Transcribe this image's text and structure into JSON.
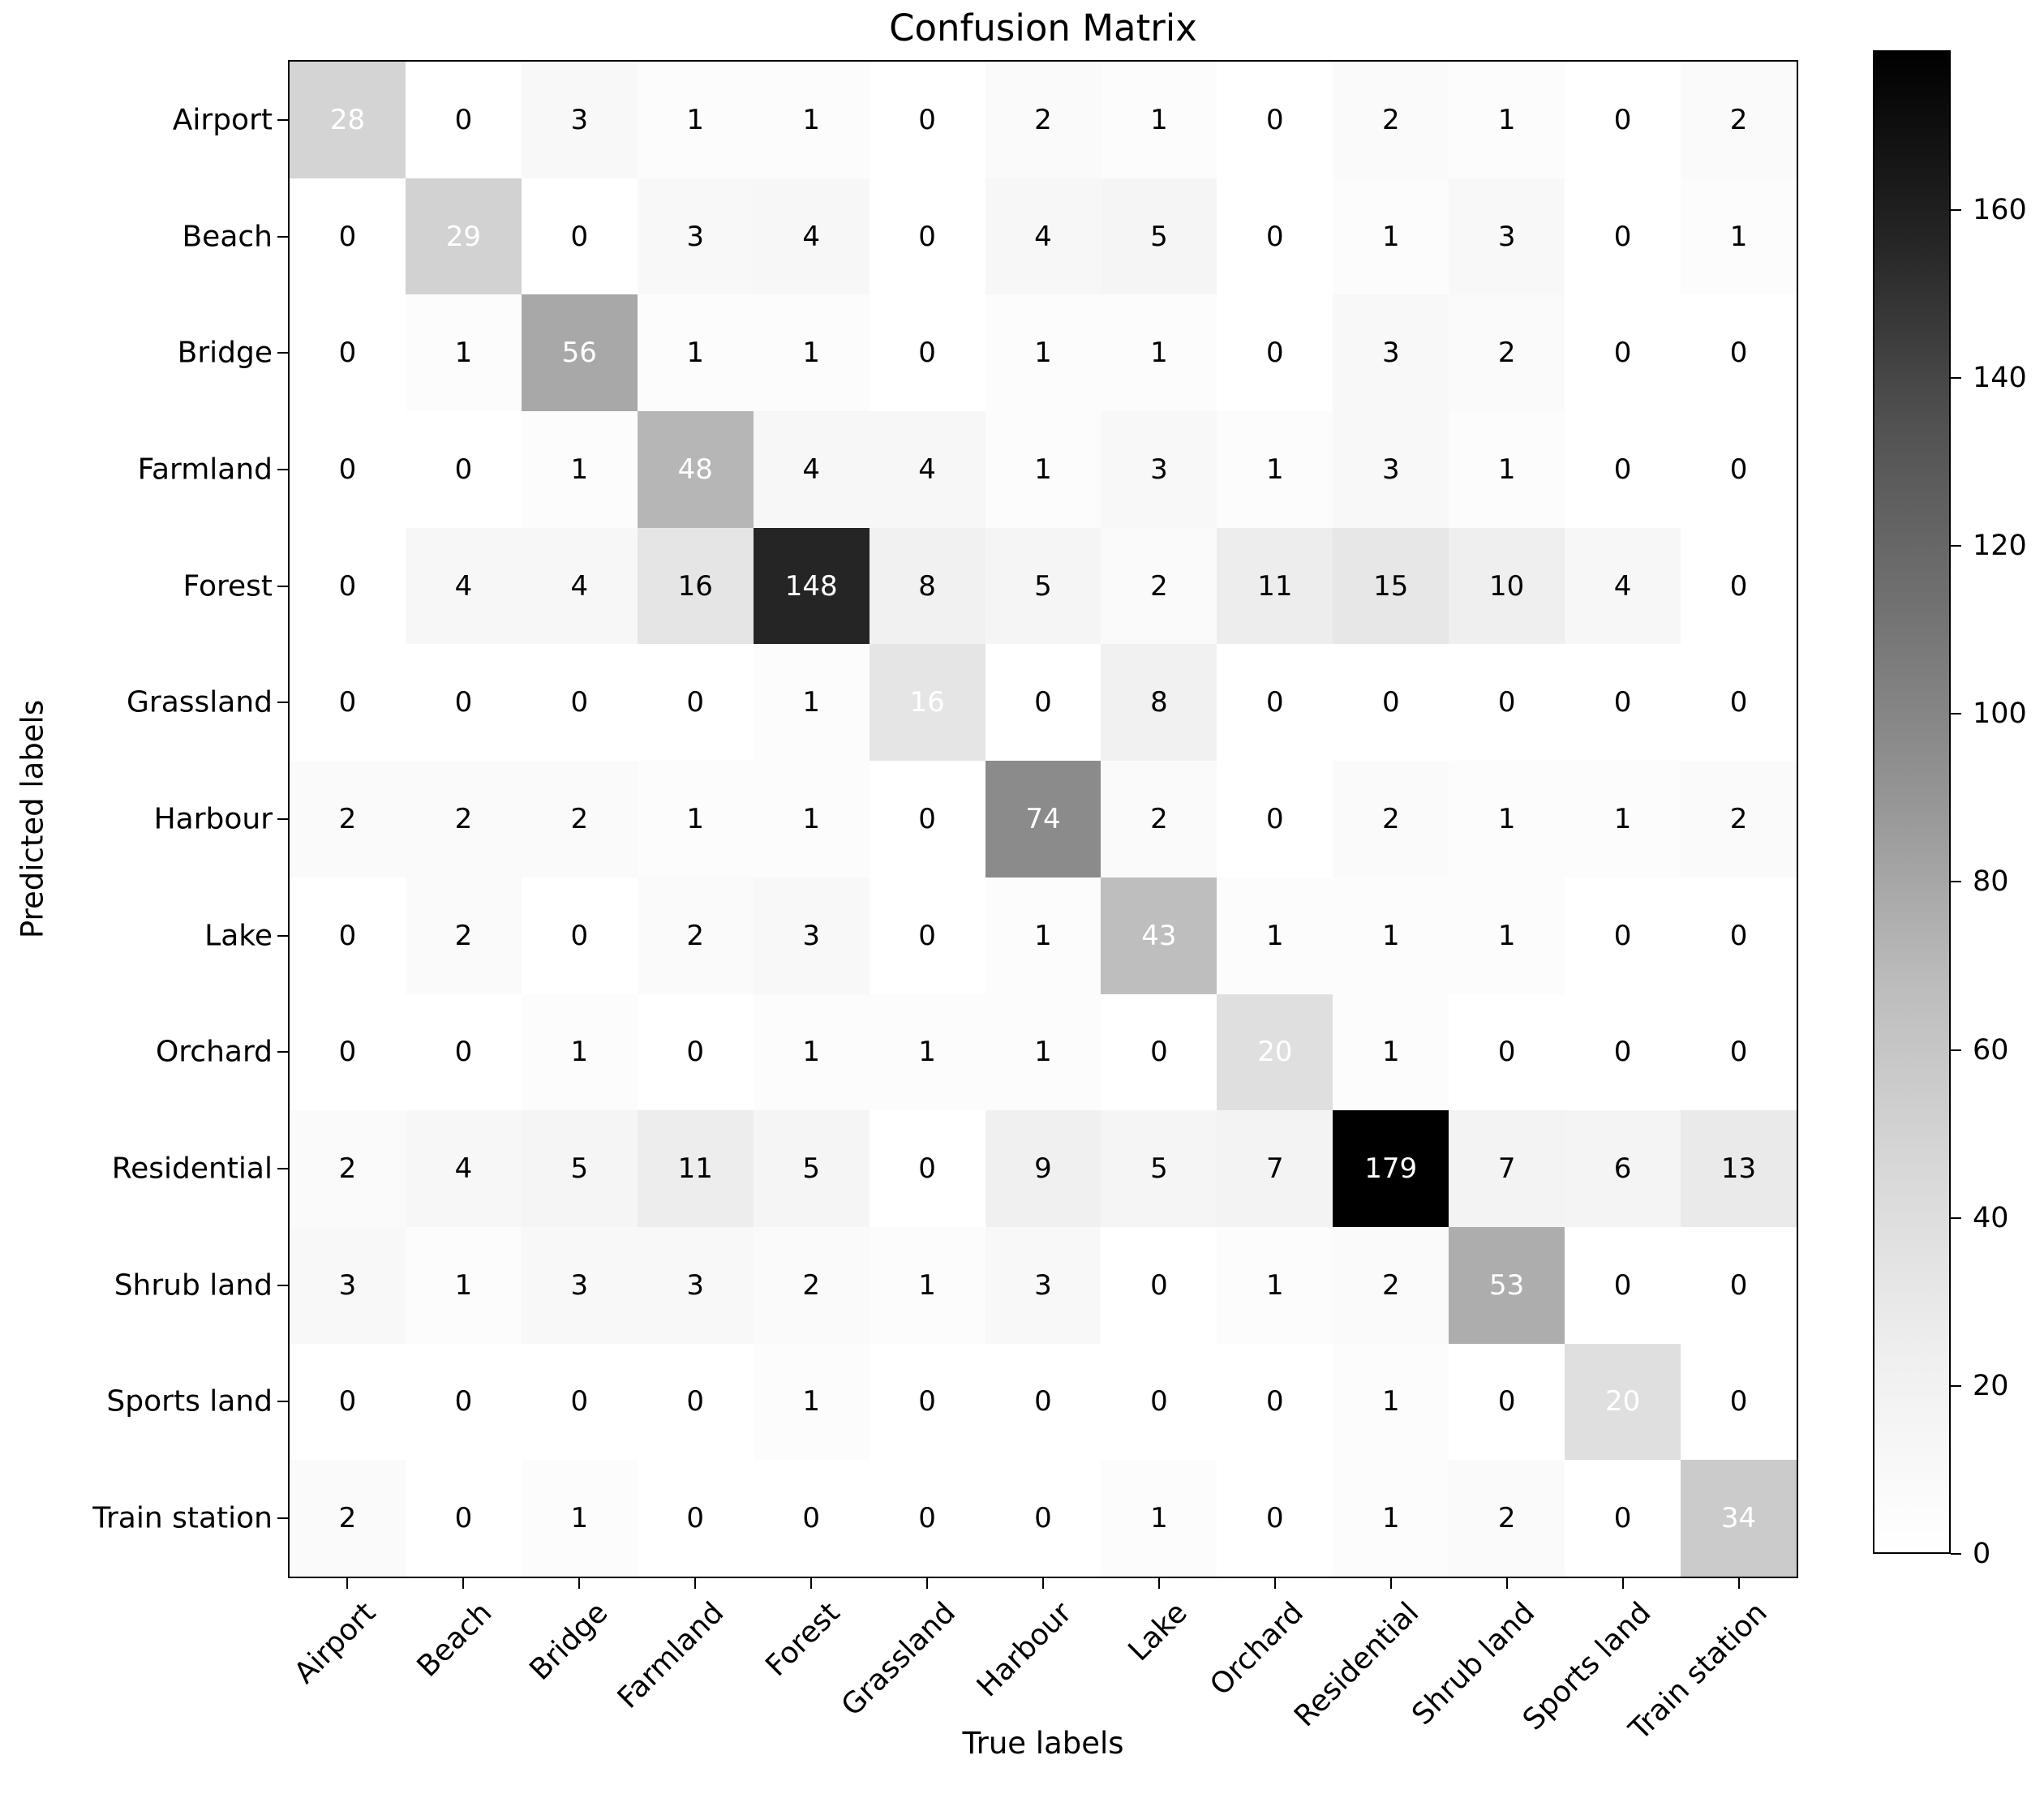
{
  "chart_data": {
    "type": "heatmap",
    "title": "Confusion Matrix",
    "xlabel": "True labels",
    "ylabel": "Predicted labels",
    "categories": [
      "Airport",
      "Beach",
      "Bridge",
      "Farmland",
      "Forest",
      "Grassland",
      "Harbour",
      "Lake",
      "Orchard",
      "Residential",
      "Shrub land",
      "Sports land",
      "Train station"
    ],
    "matrix": [
      [
        28,
        0,
        3,
        1,
        1,
        0,
        2,
        1,
        0,
        2,
        1,
        0,
        2
      ],
      [
        0,
        29,
        0,
        3,
        4,
        0,
        4,
        5,
        0,
        1,
        3,
        0,
        1
      ],
      [
        0,
        1,
        56,
        1,
        1,
        0,
        1,
        1,
        0,
        3,
        2,
        0,
        0
      ],
      [
        0,
        0,
        1,
        48,
        4,
        4,
        1,
        3,
        1,
        3,
        1,
        0,
        0
      ],
      [
        0,
        4,
        4,
        16,
        148,
        8,
        5,
        2,
        11,
        15,
        10,
        4,
        0
      ],
      [
        0,
        0,
        0,
        0,
        1,
        16,
        0,
        8,
        0,
        0,
        0,
        0,
        0
      ],
      [
        2,
        2,
        2,
        1,
        1,
        0,
        74,
        2,
        0,
        2,
        1,
        1,
        2
      ],
      [
        0,
        2,
        0,
        2,
        3,
        0,
        1,
        43,
        1,
        1,
        1,
        0,
        0
      ],
      [
        0,
        0,
        1,
        0,
        1,
        1,
        1,
        0,
        20,
        1,
        0,
        0,
        0
      ],
      [
        2,
        4,
        5,
        11,
        5,
        0,
        9,
        5,
        7,
        179,
        7,
        6,
        13
      ],
      [
        3,
        1,
        3,
        3,
        2,
        1,
        3,
        0,
        1,
        2,
        53,
        0,
        0
      ],
      [
        0,
        0,
        0,
        0,
        1,
        0,
        0,
        0,
        0,
        1,
        0,
        20,
        0
      ],
      [
        2,
        0,
        1,
        0,
        0,
        0,
        0,
        1,
        0,
        1,
        2,
        0,
        34
      ]
    ],
    "vmin": 0,
    "vmax": 179,
    "colorbar_ticks": [
      0,
      20,
      40,
      60,
      80,
      100,
      120,
      140,
      160
    ],
    "colormap": "Greys",
    "colorbar_position": "right",
    "grid": "off"
  },
  "style": {
    "gamma": 0.7,
    "diagonal_text_color": "#ffffff",
    "offdiag_text_color": "#000000",
    "axis_color": "#000000",
    "colormap_stops": [
      "#ffffff",
      "#f0f0f0",
      "#d9d9d9",
      "#bdbdbd",
      "#969696",
      "#737373",
      "#525252",
      "#252525",
      "#000000"
    ]
  }
}
